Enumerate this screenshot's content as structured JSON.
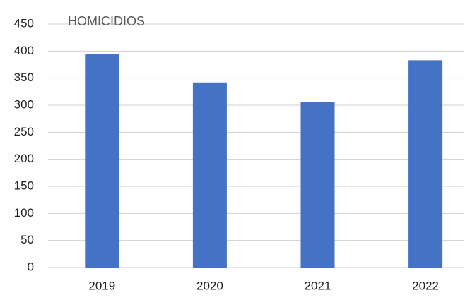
{
  "chart_data": {
    "type": "bar",
    "title": "HOMICIDIOS",
    "categories": [
      "2019",
      "2020",
      "2021",
      "2022"
    ],
    "values": [
      394,
      342,
      306,
      383
    ],
    "color": "#4472c4",
    "ylim": [
      0,
      450
    ],
    "yticks": [
      0,
      50,
      100,
      150,
      200,
      250,
      300,
      350,
      400,
      450
    ],
    "grid": true
  }
}
